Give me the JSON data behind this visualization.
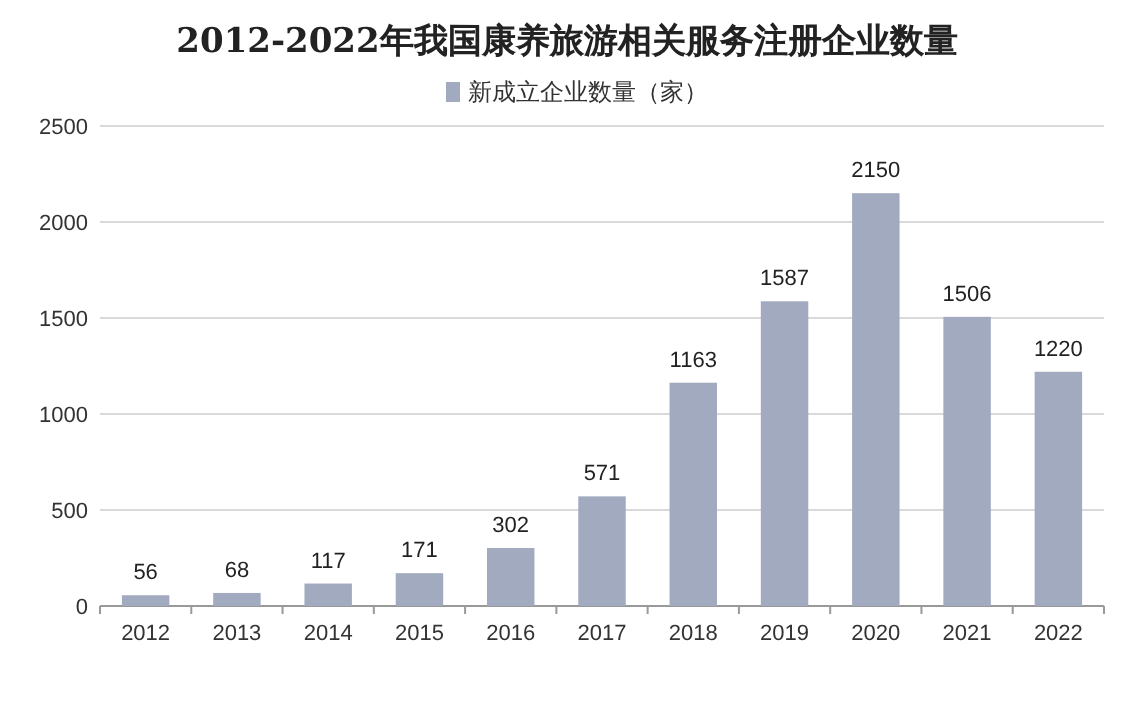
{
  "chart_data": {
    "type": "bar",
    "title": "2012-2022年我国康养旅游相关服务注册企业数量",
    "categories": [
      "2012",
      "2013",
      "2014",
      "2015",
      "2016",
      "2017",
      "2018",
      "2019",
      "2020",
      "2021",
      "2022"
    ],
    "series": [
      {
        "name": "新成立企业数量（家）",
        "color": "#a2aac0",
        "values": [
          56,
          68,
          117,
          171,
          302,
          571,
          1163,
          1587,
          2150,
          1506,
          1220
        ]
      }
    ],
    "ylim": [
      0,
      2500
    ],
    "yticks": [
      0,
      500,
      1000,
      1500,
      2000,
      2500
    ],
    "grid": "y",
    "legend": "top",
    "data_labels": true
  }
}
